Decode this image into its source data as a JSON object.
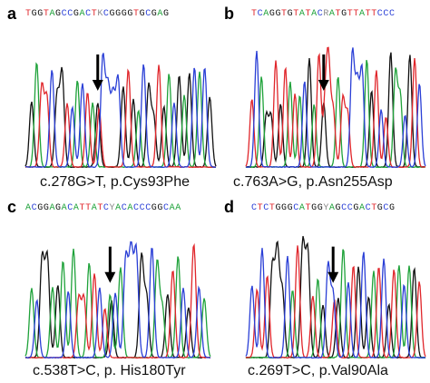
{
  "chart_data": [
    {
      "type": "line",
      "panel_label": "a",
      "sequence": "TGGTAGCCGACTKCGGGGTGCGAG",
      "caption": "c.278G>T, p.Cys93Phe",
      "peak_bases": "GATTCGGTCACTAGCCCCGTGACGGTGACGAGCACG",
      "arrow_peak_index": 13
    },
    {
      "type": "line",
      "panel_label": "b",
      "sequence": "TCAGGTGTATACRATGTTATTCCC",
      "caption": "c.763A>G, p.Asn255Asp",
      "peak_bases": "TCAGGTGTATACGATGTTATTCCCAGTCTGAACGTC",
      "arrow_peak_index": 15
    },
    {
      "type": "line",
      "panel_label": "c",
      "sequence": "ACGGAGACATTATCYACACCCGGCAA",
      "caption": "c.538T>C, p. His180Tyr",
      "peak_bases": "ACGGAGACATTATCTACACCCGGCAAGTACGTCA",
      "arrow_peak_index": 15
    },
    {
      "type": "line",
      "panel_label": "d",
      "sequence": "CTCTGGGCATGGYAGCCGACTGCG",
      "caption": "c.269T>C, p.Val90Ala",
      "peak_bases": "CTCTGGGCATGGTAGCCGACTGCGATCGTACAGT",
      "arrow_peak_index": 16
    }
  ],
  "base_colors": {
    "A": "#1fa23a",
    "C": "#2a3fd6",
    "G": "#111111",
    "T": "#e0262b",
    "K": "#888888",
    "R": "#888888",
    "Y": "#888888"
  }
}
